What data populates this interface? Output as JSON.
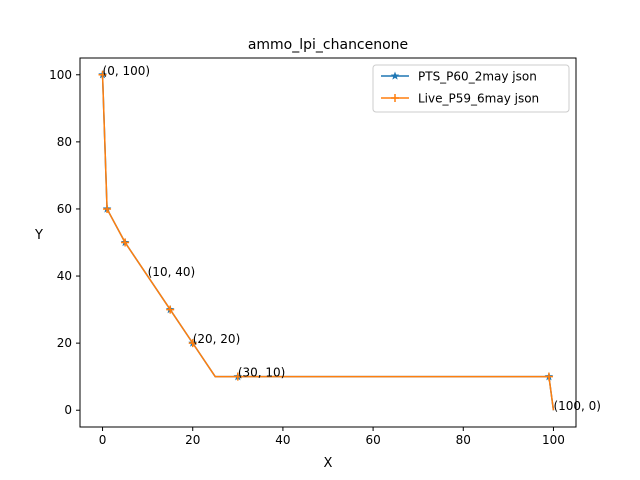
{
  "chart_data": {
    "type": "line",
    "title": "ammo_lpi_chancenone",
    "xlabel": "X",
    "ylabel": "Y",
    "xlim": [
      -5,
      105
    ],
    "ylim": [
      -5,
      105
    ],
    "xticks": [
      0,
      20,
      40,
      60,
      80,
      100
    ],
    "yticks": [
      0,
      20,
      40,
      60,
      80,
      100
    ],
    "grid": false,
    "legend_position": "top-right",
    "series": [
      {
        "name": "PTS_P60_2may json",
        "color": "#1f77b4",
        "marker": "star",
        "x": [
          0,
          1,
          5,
          15,
          20,
          25,
          30,
          99,
          100
        ],
        "y": [
          100,
          60,
          50,
          30,
          20,
          10,
          10,
          10,
          0
        ],
        "marked": [
          true,
          true,
          true,
          true,
          true,
          false,
          true,
          true,
          false
        ]
      },
      {
        "name": "Live_P59_6may json",
        "color": "#ff7f0e",
        "marker": "plus",
        "x": [
          0,
          1,
          5,
          15,
          20,
          25,
          30,
          99,
          100
        ],
        "y": [
          100,
          60,
          50,
          30,
          20,
          10,
          10,
          10,
          0
        ],
        "marked": [
          true,
          true,
          true,
          true,
          true,
          false,
          true,
          true,
          false
        ]
      }
    ],
    "annotations": [
      {
        "text": "(0, 100)",
        "x": 0,
        "y": 100
      },
      {
        "text": "(10, 40)",
        "x": 10,
        "y": 40
      },
      {
        "text": "(20, 20)",
        "x": 20,
        "y": 20
      },
      {
        "text": "(30, 10)",
        "x": 30,
        "y": 10
      },
      {
        "text": "(100, 0)",
        "x": 100,
        "y": 0
      }
    ]
  }
}
